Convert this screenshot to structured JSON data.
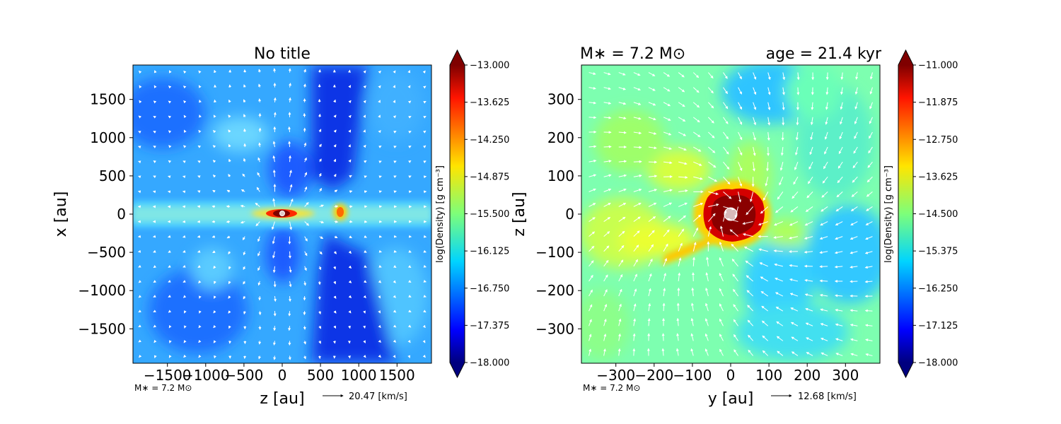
{
  "chart_data": [
    {
      "type": "heatmap",
      "title": "No title",
      "xlabel": "z [au]",
      "ylabel": "x [au]",
      "xlim": [
        -1950,
        1950
      ],
      "ylim": [
        -1950,
        1950
      ],
      "xticks": [
        "−1500",
        "−1000",
        "−500",
        "0",
        "500",
        "1000",
        "1500"
      ],
      "xtick_values": [
        -1500,
        -1000,
        -500,
        0,
        500,
        1000,
        1500
      ],
      "yticks": [
        "1500",
        "1000",
        "500",
        "0",
        "−500",
        "−1000",
        "−1500"
      ],
      "ytick_values": [
        1500,
        1000,
        500,
        0,
        -500,
        -1000,
        -1500
      ],
      "colorbar": {
        "label": "log(Density) [g cm⁻³]",
        "range": [
          -18.0,
          -13.0
        ],
        "ticks": [
          "−13.000",
          "−13.625",
          "−14.250",
          "−14.875",
          "−15.500",
          "−16.125",
          "−16.750",
          "−17.375",
          "−18.000"
        ],
        "tick_values": [
          -13.0,
          -13.625,
          -14.25,
          -14.875,
          -15.5,
          -16.125,
          -16.75,
          -17.375,
          -18.0
        ]
      },
      "star_note": "M∗ = 7.2 M⊙",
      "quiver_key": "20.47 [km/s]"
    },
    {
      "type": "heatmap",
      "title_left": "M∗ = 7.2 M⊙",
      "title_right": "age = 21.4 kyr",
      "xlabel": "y [au]",
      "ylabel": "z [au]",
      "xlim": [
        -390,
        390
      ],
      "ylim": [
        -390,
        390
      ],
      "xticks": [
        "−300",
        "−200",
        "−100",
        "0",
        "100",
        "200",
        "300"
      ],
      "xtick_values": [
        -300,
        -200,
        -100,
        0,
        100,
        200,
        300
      ],
      "yticks": [
        "300",
        "200",
        "100",
        "0",
        "−100",
        "−200",
        "−300"
      ],
      "ytick_values": [
        300,
        200,
        100,
        0,
        -100,
        -200,
        -300
      ],
      "colorbar": {
        "label": "log(Density) [g cm⁻³]",
        "range": [
          -18.0,
          -11.0
        ],
        "ticks": [
          "−11.000",
          "−11.875",
          "−12.750",
          "−13.625",
          "−14.500",
          "−15.375",
          "−16.250",
          "−17.125",
          "−18.000"
        ],
        "tick_values": [
          -11.0,
          -11.875,
          -12.75,
          -13.625,
          -14.5,
          -15.375,
          -16.25,
          -17.125,
          -18.0
        ]
      },
      "star_note": "M∗ = 7.2 M⊙",
      "quiver_key": "12.68 [km/s]"
    }
  ]
}
